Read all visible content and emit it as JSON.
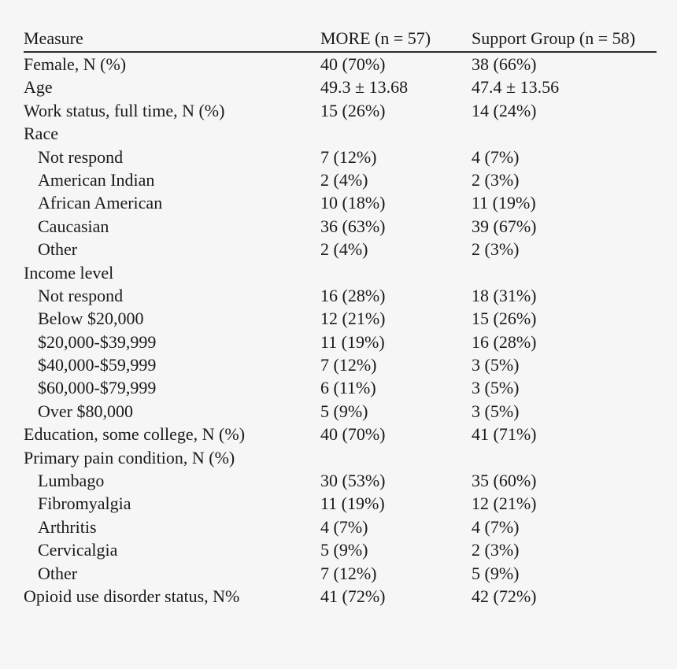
{
  "page": {
    "background_color": "#f6f6f6",
    "text_color": "#1a1a1a",
    "rule_color": "#2b2b2b"
  },
  "table": {
    "columns": [
      {
        "label": "Measure"
      },
      {
        "label": "MORE (n = 57)"
      },
      {
        "label": "Support Group (n = 58)"
      }
    ],
    "rows": [
      {
        "label": "Female, N (%)",
        "more": "40 (70%)",
        "support": "38 (66%)",
        "indent": false
      },
      {
        "label": "Age",
        "more": "49.3 ± 13.68",
        "support": "47.4 ± 13.56",
        "indent": false
      },
      {
        "label": "Work status, full time, N (%)",
        "more": "15 (26%)",
        "support": "14 (24%)",
        "indent": false
      },
      {
        "label": "Race",
        "more": "",
        "support": "",
        "indent": false
      },
      {
        "label": "Not respond",
        "more": "7 (12%)",
        "support": "4 (7%)",
        "indent": true
      },
      {
        "label": "American Indian",
        "more": "2 (4%)",
        "support": "2 (3%)",
        "indent": true
      },
      {
        "label": "African American",
        "more": "10 (18%)",
        "support": "11 (19%)",
        "indent": true
      },
      {
        "label": "Caucasian",
        "more": "36 (63%)",
        "support": "39 (67%)",
        "indent": true
      },
      {
        "label": "Other",
        "more": "2 (4%)",
        "support": "2 (3%)",
        "indent": true
      },
      {
        "label": "Income level",
        "more": "",
        "support": "",
        "indent": false
      },
      {
        "label": "Not respond",
        "more": "16 (28%)",
        "support": "18 (31%)",
        "indent": true
      },
      {
        "label": "Below $20,000",
        "more": "12 (21%)",
        "support": "15 (26%)",
        "indent": true
      },
      {
        "label": "$20,000-$39,999",
        "more": "11 (19%)",
        "support": "16 (28%)",
        "indent": true
      },
      {
        "label": "$40,000-$59,999",
        "more": "7 (12%)",
        "support": "3 (5%)",
        "indent": true
      },
      {
        "label": "$60,000-$79,999",
        "more": "6 (11%)",
        "support": "3 (5%)",
        "indent": true
      },
      {
        "label": "Over $80,000",
        "more": "5 (9%)",
        "support": "3 (5%)",
        "indent": true
      },
      {
        "label": "Education, some college, N (%)",
        "more": "40 (70%)",
        "support": "41 (71%)",
        "indent": false
      },
      {
        "label": "Primary pain condition, N (%)",
        "more": "",
        "support": "",
        "indent": false
      },
      {
        "label": "Lumbago",
        "more": "30 (53%)",
        "support": "35 (60%)",
        "indent": true
      },
      {
        "label": "Fibromyalgia",
        "more": "11 (19%)",
        "support": "12 (21%)",
        "indent": true
      },
      {
        "label": "Arthritis",
        "more": "4 (7%)",
        "support": "4 (7%)",
        "indent": true
      },
      {
        "label": "Cervicalgia",
        "more": "5 (9%)",
        "support": "2 (3%)",
        "indent": true
      },
      {
        "label": "Other",
        "more": "7 (12%)",
        "support": "5 (9%)",
        "indent": true
      },
      {
        "label": "Opioid use disorder status, N%",
        "more": "41 (72%)",
        "support": "42 (72%)",
        "indent": false
      }
    ]
  }
}
